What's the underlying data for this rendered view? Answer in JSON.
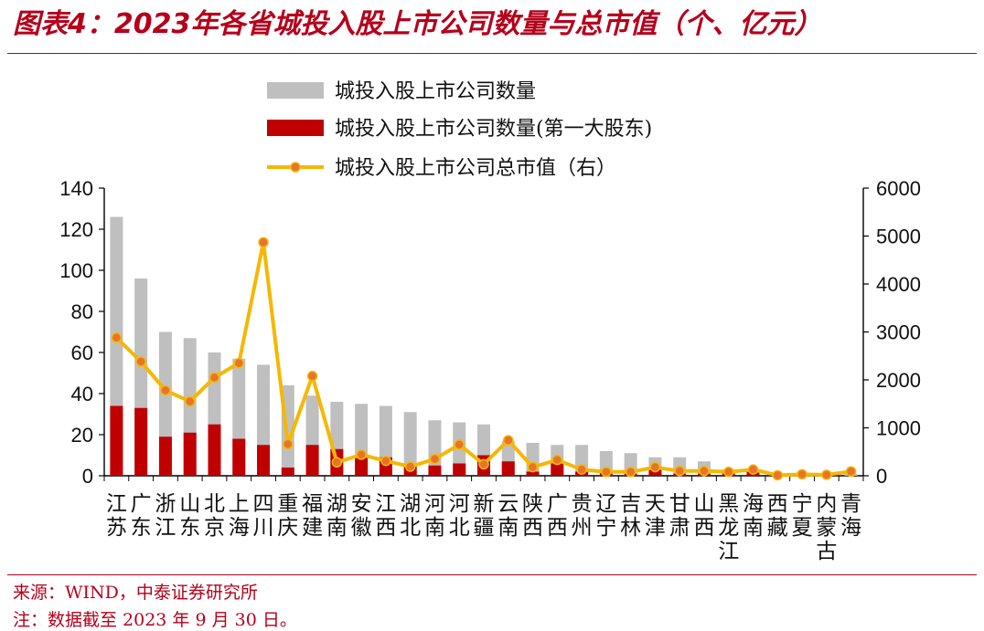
{
  "title": "图表4：2023年各省城投入股上市公司数量与总市值（个、亿元）",
  "notes": {
    "source": "来源：WIND，中泰证券研究所",
    "date": "注：数据截至 2023 年 9 月 30 日。"
  },
  "colors": {
    "brand_red": "#b5001b",
    "total_bar": "#bfbfbf",
    "first_shareholder_bar": "#c00000",
    "line": "#f5b700",
    "marker": "#e8732a"
  },
  "chart_data": {
    "type": "bar",
    "categories": [
      "江苏",
      "广东",
      "浙江",
      "山东",
      "北京",
      "上海",
      "四川",
      "重庆",
      "福建",
      "湖南",
      "安徽",
      "江西",
      "湖北",
      "河南",
      "河北",
      "新疆",
      "云南",
      "陕西",
      "广西",
      "贵州",
      "辽宁",
      "吉林",
      "天津",
      "甘肃",
      "山西",
      "黑龙江",
      "海南",
      "西藏",
      "宁夏",
      "内蒙古",
      "青海"
    ],
    "series": [
      {
        "name": "城投入股上市公司数量",
        "type": "bar",
        "axis": "left",
        "values": [
          126,
          96,
          70,
          67,
          60,
          57,
          54,
          44,
          39,
          36,
          35,
          34,
          31,
          27,
          26,
          25,
          17,
          16,
          15,
          15,
          12,
          11,
          9,
          9,
          7,
          3,
          3,
          1,
          1,
          1,
          1
        ]
      },
      {
        "name": "城投入股上市公司数量(第一大股东)",
        "type": "bar",
        "axis": "left",
        "values": [
          34,
          33,
          19,
          21,
          25,
          18,
          15,
          4,
          15,
          13,
          9,
          9,
          5,
          5,
          6,
          10,
          7,
          2,
          6,
          2,
          2,
          1,
          3,
          1,
          1,
          1,
          2,
          0,
          0,
          0,
          0
        ]
      },
      {
        "name": "城投入股上市公司总市值（右）",
        "type": "line",
        "axis": "right",
        "values": [
          2880,
          2380,
          1780,
          1550,
          2050,
          2350,
          4870,
          660,
          2080,
          280,
          440,
          310,
          190,
          350,
          650,
          240,
          740,
          180,
          330,
          130,
          80,
          80,
          180,
          100,
          100,
          80,
          130,
          10,
          30,
          20,
          90
        ]
      }
    ],
    "y_left": {
      "ticks": [
        "0",
        "20",
        "40",
        "60",
        "80",
        "100",
        "120",
        "140"
      ],
      "ylim": [
        0,
        140
      ]
    },
    "y_right": {
      "ticks": [
        "0",
        "1000",
        "2000",
        "3000",
        "4000",
        "5000",
        "6000"
      ],
      "ylim": [
        0,
        6000
      ]
    },
    "legend_position": "top",
    "grid": false
  }
}
